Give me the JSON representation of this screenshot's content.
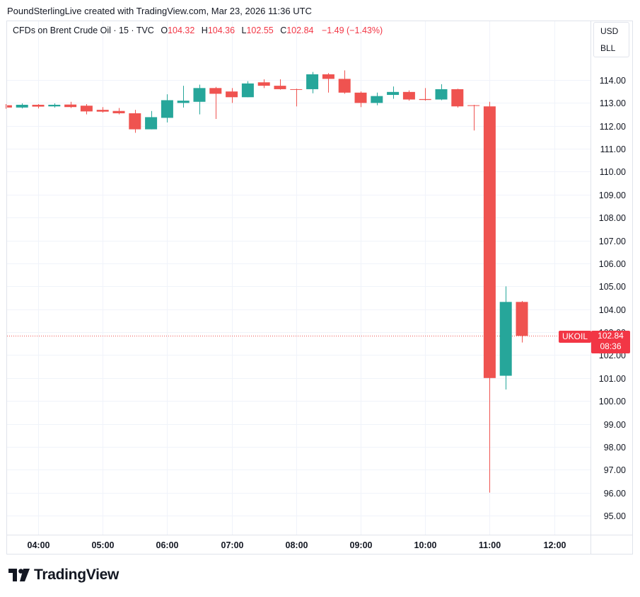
{
  "header": {
    "credit": "PoundSterlingLive created with TradingView.com, Mar 23, 2026 11:36 UTC"
  },
  "legend": {
    "symbol": "CFDs on Brent Crude Oil · 15 · TVC",
    "o_label": "O",
    "o_value": "104.32",
    "h_label": "H",
    "h_value": "104.36",
    "l_label": "L",
    "l_value": "102.55",
    "c_label": "C",
    "c_value": "102.84",
    "change": "−1.49 (−1.43%)"
  },
  "currency": {
    "primary": "USD",
    "unit": "BLL"
  },
  "last_price": {
    "symbol": "UKOIL",
    "price": "102.84",
    "countdown": "08:36"
  },
  "brand": {
    "name": "TradingView"
  },
  "colors": {
    "up": "#26a69a",
    "down": "#ef5350",
    "grid": "#f0f3fa",
    "text": "#131722"
  },
  "chart_data": {
    "type": "candlestick",
    "ylim": [
      94.2,
      115.3
    ],
    "y_ticks": [
      "95.00",
      "96.00",
      "97.00",
      "98.00",
      "99.00",
      "100.00",
      "101.00",
      "102.00",
      "103.00",
      "104.00",
      "105.00",
      "106.00",
      "107.00",
      "108.00",
      "109.00",
      "110.00",
      "111.00",
      "112.00",
      "113.00",
      "114.00"
    ],
    "x_ticks": [
      {
        "label": "04:00",
        "t": 0
      },
      {
        "label": "05:00",
        "t": 4
      },
      {
        "label": "06:00",
        "t": 8
      },
      {
        "label": "07:00",
        "t": 12
      },
      {
        "label": "08:00",
        "t": 16
      },
      {
        "label": "09:00",
        "t": 20
      },
      {
        "label": "10:00",
        "t": 24
      },
      {
        "label": "11:00",
        "t": 28
      },
      {
        "label": "12:00",
        "t": 32
      }
    ],
    "last_value": 102.84,
    "candles": [
      {
        "t": -2,
        "o": 112.9,
        "h": 112.95,
        "l": 112.75,
        "c": 112.8
      },
      {
        "t": -1,
        "o": 112.8,
        "h": 112.98,
        "l": 112.76,
        "c": 112.92
      },
      {
        "t": 0,
        "o": 112.92,
        "h": 112.95,
        "l": 112.76,
        "c": 112.84
      },
      {
        "t": 1,
        "o": 112.85,
        "h": 112.98,
        "l": 112.8,
        "c": 112.92
      },
      {
        "t": 2,
        "o": 112.93,
        "h": 113.05,
        "l": 112.78,
        "c": 112.82
      },
      {
        "t": 3,
        "o": 112.88,
        "h": 112.95,
        "l": 112.5,
        "c": 112.63
      },
      {
        "t": 4,
        "o": 112.7,
        "h": 112.82,
        "l": 112.58,
        "c": 112.62
      },
      {
        "t": 5,
        "o": 112.65,
        "h": 112.78,
        "l": 112.5,
        "c": 112.55
      },
      {
        "t": 6,
        "o": 112.55,
        "h": 112.7,
        "l": 111.7,
        "c": 111.85
      },
      {
        "t": 7,
        "o": 111.85,
        "h": 112.65,
        "l": 111.85,
        "c": 112.38
      },
      {
        "t": 8,
        "o": 112.35,
        "h": 113.38,
        "l": 112.15,
        "c": 113.12
      },
      {
        "t": 9,
        "o": 113.0,
        "h": 113.75,
        "l": 112.8,
        "c": 113.1
      },
      {
        "t": 10,
        "o": 113.05,
        "h": 113.8,
        "l": 112.5,
        "c": 113.65
      },
      {
        "t": 11,
        "o": 113.65,
        "h": 113.7,
        "l": 112.3,
        "c": 113.4
      },
      {
        "t": 12,
        "o": 113.5,
        "h": 113.65,
        "l": 113.0,
        "c": 113.25
      },
      {
        "t": 13,
        "o": 113.25,
        "h": 113.95,
        "l": 113.25,
        "c": 113.85
      },
      {
        "t": 14,
        "o": 113.9,
        "h": 114.03,
        "l": 113.65,
        "c": 113.75
      },
      {
        "t": 15,
        "o": 113.75,
        "h": 114.03,
        "l": 113.58,
        "c": 113.6
      },
      {
        "t": 16,
        "o": 113.6,
        "h": 113.62,
        "l": 112.85,
        "c": 113.58
      },
      {
        "t": 17,
        "o": 113.6,
        "h": 114.35,
        "l": 113.42,
        "c": 114.25
      },
      {
        "t": 18,
        "o": 114.25,
        "h": 114.3,
        "l": 113.45,
        "c": 114.05
      },
      {
        "t": 19,
        "o": 114.05,
        "h": 114.42,
        "l": 113.4,
        "c": 113.45
      },
      {
        "t": 20,
        "o": 113.45,
        "h": 113.5,
        "l": 112.82,
        "c": 113.0
      },
      {
        "t": 21,
        "o": 113.0,
        "h": 113.45,
        "l": 112.9,
        "c": 113.3
      },
      {
        "t": 22,
        "o": 113.35,
        "h": 113.72,
        "l": 113.18,
        "c": 113.48
      },
      {
        "t": 23,
        "o": 113.48,
        "h": 113.55,
        "l": 113.1,
        "c": 113.15
      },
      {
        "t": 24,
        "o": 113.17,
        "h": 113.65,
        "l": 113.1,
        "c": 113.13
      },
      {
        "t": 25,
        "o": 113.15,
        "h": 113.82,
        "l": 113.12,
        "c": 113.6
      },
      {
        "t": 26,
        "o": 113.6,
        "h": 113.62,
        "l": 112.8,
        "c": 112.85
      },
      {
        "t": 27,
        "o": 112.9,
        "h": 112.92,
        "l": 111.8,
        "c": 112.88
      },
      {
        "t": 28,
        "o": 112.85,
        "h": 113.05,
        "l": 96.0,
        "c": 101.0
      },
      {
        "t": 29,
        "o": 101.1,
        "h": 105.0,
        "l": 100.5,
        "c": 104.32
      },
      {
        "t": 30,
        "o": 104.32,
        "h": 104.36,
        "l": 102.55,
        "c": 102.84
      }
    ]
  }
}
